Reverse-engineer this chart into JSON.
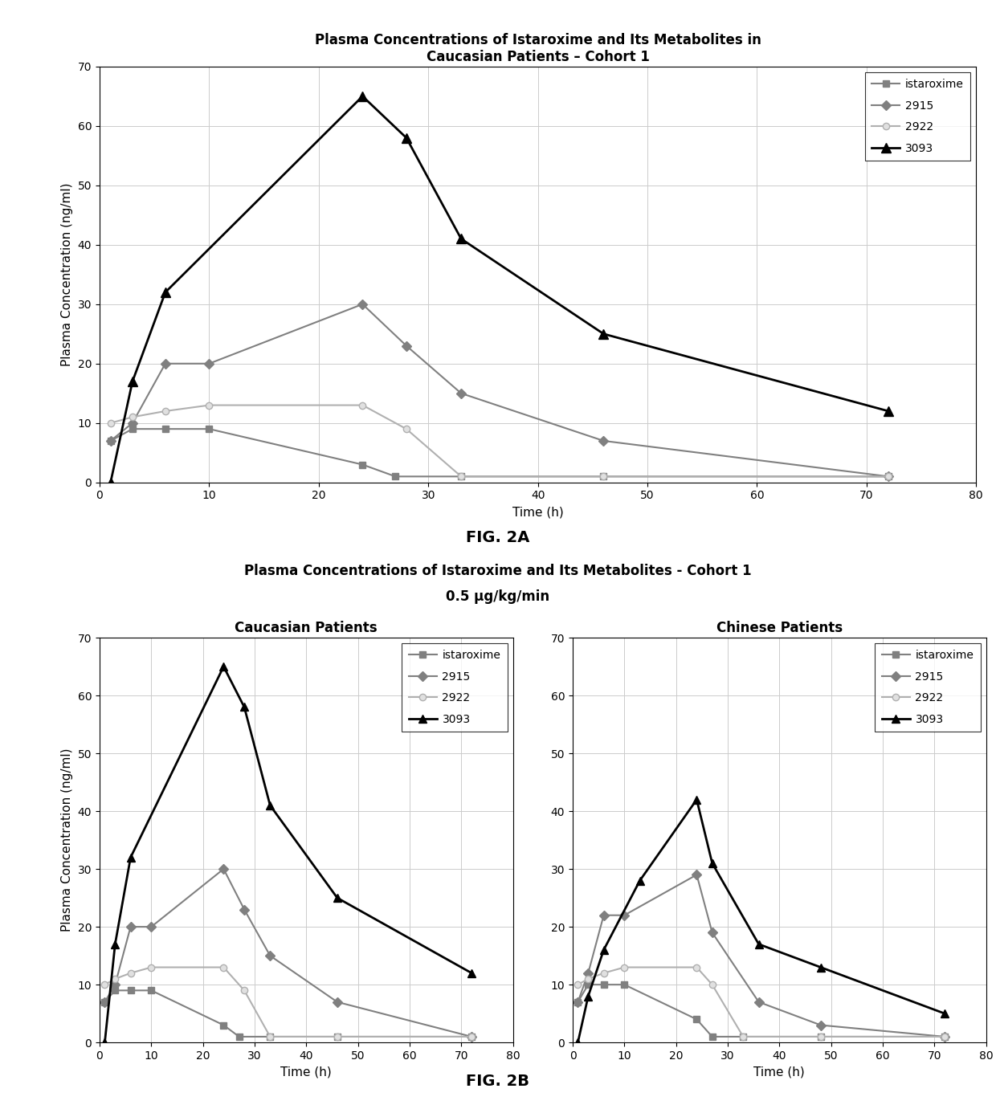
{
  "fig2a": {
    "title": "Plasma Concentrations of Istaroxime and Its Metabolites in\nCaucasian Patients – Cohort 1",
    "xlabel": "Time (h)",
    "ylabel": "Plasma Concentration (ng/ml)",
    "series": {
      "istaroxime": {
        "x": [
          1,
          3,
          6,
          10,
          24,
          27,
          33,
          46,
          72
        ],
        "y": [
          7,
          9,
          9,
          9,
          3,
          1,
          1,
          1,
          1
        ],
        "color": "#808080",
        "marker": "s",
        "linewidth": 1.5,
        "markersize": 6
      },
      "2915": {
        "x": [
          1,
          3,
          6,
          10,
          24,
          28,
          33,
          46,
          72
        ],
        "y": [
          7,
          10,
          20,
          20,
          30,
          23,
          15,
          7,
          1
        ],
        "color": "#808080",
        "marker": "D",
        "linewidth": 1.5,
        "markersize": 6
      },
      "2922": {
        "x": [
          1,
          3,
          6,
          10,
          24,
          28,
          33,
          46,
          72
        ],
        "y": [
          10,
          11,
          12,
          13,
          13,
          9,
          1,
          1,
          1
        ],
        "color": "#b0b0b0",
        "marker": "o",
        "linewidth": 1.5,
        "markersize": 6
      },
      "3093": {
        "x": [
          1,
          3,
          6,
          24,
          28,
          33,
          46,
          72
        ],
        "y": [
          0,
          17,
          32,
          65,
          58,
          41,
          25,
          12
        ],
        "color": "#000000",
        "marker": "^",
        "linewidth": 2,
        "markersize": 8
      }
    }
  },
  "fig2b_caucasian": {
    "title": "Caucasian Patients",
    "xlabel": "Time (h)",
    "ylabel": "Plasma Concentration (ng/ml)",
    "series": {
      "istaroxime": {
        "x": [
          1,
          3,
          6,
          10,
          24,
          27,
          33,
          46,
          72
        ],
        "y": [
          7,
          9,
          9,
          9,
          3,
          1,
          1,
          1,
          1
        ],
        "color": "#808080",
        "marker": "s",
        "linewidth": 1.5,
        "markersize": 6
      },
      "2915": {
        "x": [
          1,
          3,
          6,
          10,
          24,
          28,
          33,
          46,
          72
        ],
        "y": [
          7,
          10,
          20,
          20,
          30,
          23,
          15,
          7,
          1
        ],
        "color": "#808080",
        "marker": "D",
        "linewidth": 1.5,
        "markersize": 6
      },
      "2922": {
        "x": [
          1,
          3,
          6,
          10,
          24,
          28,
          33,
          46,
          72
        ],
        "y": [
          10,
          11,
          12,
          13,
          13,
          9,
          1,
          1,
          1
        ],
        "color": "#b0b0b0",
        "marker": "o",
        "linewidth": 1.5,
        "markersize": 6
      },
      "3093": {
        "x": [
          1,
          3,
          6,
          24,
          28,
          33,
          46,
          72
        ],
        "y": [
          0,
          17,
          32,
          65,
          58,
          41,
          25,
          12
        ],
        "color": "#000000",
        "marker": "^",
        "linewidth": 2,
        "markersize": 7
      }
    }
  },
  "fig2b_chinese": {
    "title": "Chinese Patients",
    "xlabel": "Time (h)",
    "series": {
      "istaroxime": {
        "x": [
          1,
          3,
          6,
          10,
          24,
          27,
          33,
          48,
          72
        ],
        "y": [
          7,
          10,
          10,
          10,
          4,
          1,
          1,
          1,
          1
        ],
        "color": "#808080",
        "marker": "s",
        "linewidth": 1.5,
        "markersize": 6
      },
      "2915": {
        "x": [
          1,
          3,
          6,
          10,
          24,
          27,
          36,
          48,
          72
        ],
        "y": [
          7,
          12,
          22,
          22,
          29,
          19,
          7,
          3,
          1
        ],
        "color": "#808080",
        "marker": "D",
        "linewidth": 1.5,
        "markersize": 6
      },
      "2922": {
        "x": [
          1,
          3,
          6,
          10,
          24,
          27,
          33,
          48,
          72
        ],
        "y": [
          10,
          11,
          12,
          13,
          13,
          10,
          1,
          1,
          1
        ],
        "color": "#b0b0b0",
        "marker": "o",
        "linewidth": 1.5,
        "markersize": 6
      },
      "3093": {
        "x": [
          1,
          3,
          6,
          13,
          24,
          27,
          36,
          48,
          72
        ],
        "y": [
          0,
          8,
          16,
          28,
          42,
          31,
          17,
          13,
          5
        ],
        "color": "#000000",
        "marker": "^",
        "linewidth": 2,
        "markersize": 7
      }
    }
  },
  "fig2b_title_line1": "Plasma Concentrations of Istaroxime and Its Metabolites - Cohort 1",
  "fig2b_title_line2": "0.5 μg/kg/min",
  "fig2a_label": "FIG. 2A",
  "fig2b_label": "FIG. 2B",
  "series_order": [
    "istaroxime",
    "2915",
    "2922",
    "3093"
  ],
  "xlim": [
    0,
    80
  ],
  "ylim": [
    0,
    70
  ],
  "xticks": [
    0,
    10,
    20,
    30,
    40,
    50,
    60,
    70,
    80
  ],
  "yticks": [
    0,
    10,
    20,
    30,
    40,
    50,
    60,
    70
  ],
  "grid_color": "#cccccc",
  "grid_linewidth": 0.7,
  "background_color": "#ffffff",
  "title_fontsize": 13,
  "subtitle_fontsize": 12,
  "axis_label_fontsize": 11,
  "tick_fontsize": 10,
  "legend_fontsize": 10,
  "figlabel_fontsize": 14
}
